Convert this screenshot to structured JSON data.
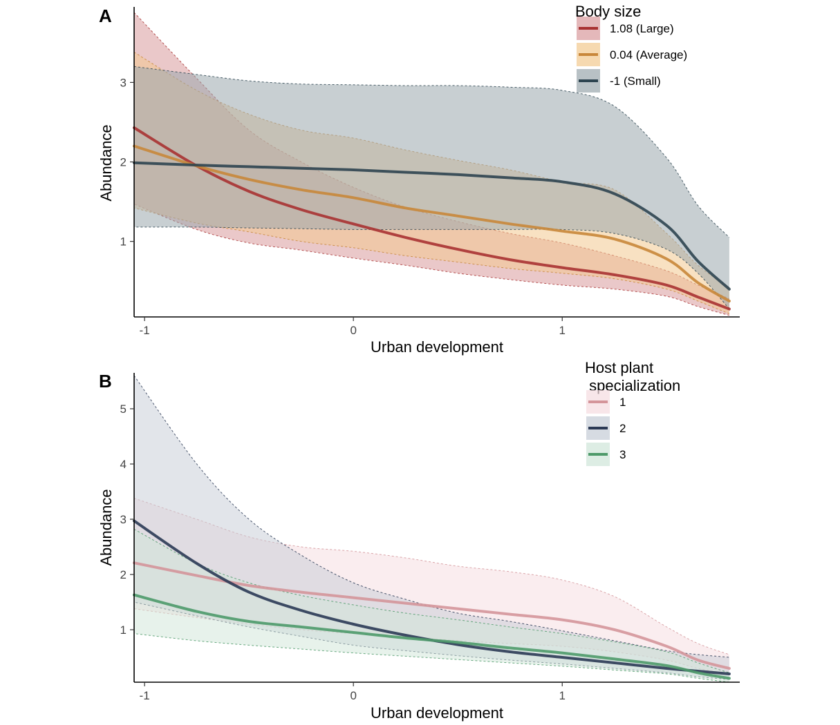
{
  "chart_data": [
    {
      "panel": "A",
      "type": "line",
      "xlabel": "Urban development",
      "ylabel": "Abundance",
      "xlim": [
        -1.05,
        1.85
      ],
      "ylim": [
        0.05,
        3.95
      ],
      "xticks": [
        -1,
        0,
        1
      ],
      "yticks": [
        1,
        2,
        3
      ],
      "grid": false,
      "legend": {
        "title": "Body size",
        "position": "top-right"
      },
      "x": [
        -1.05,
        -0.75,
        -0.5,
        -0.25,
        0,
        0.25,
        0.5,
        0.75,
        1.0,
        1.25,
        1.5,
        1.65,
        1.8
      ],
      "series": [
        {
          "name": "1.08 (Large)",
          "color": "#a83232",
          "fill": "#d99a9d",
          "values": [
            2.43,
            1.95,
            1.63,
            1.4,
            1.22,
            1.05,
            0.9,
            0.77,
            0.67,
            0.58,
            0.45,
            0.3,
            0.15
          ],
          "lower": [
            1.47,
            1.15,
            0.98,
            0.89,
            0.79,
            0.7,
            0.6,
            0.52,
            0.45,
            0.4,
            0.31,
            0.18,
            0.07
          ],
          "upper": [
            3.88,
            3.05,
            2.4,
            2.0,
            1.68,
            1.43,
            1.25,
            1.1,
            0.98,
            0.82,
            0.63,
            0.45,
            0.28
          ]
        },
        {
          "name": "0.04 (Average)",
          "color": "#c8873a",
          "fill": "#f2c98f",
          "values": [
            2.2,
            1.95,
            1.78,
            1.65,
            1.55,
            1.42,
            1.32,
            1.22,
            1.13,
            1.03,
            0.78,
            0.48,
            0.25
          ],
          "lower": [
            1.42,
            1.23,
            1.12,
            1.0,
            0.92,
            0.82,
            0.74,
            0.66,
            0.6,
            0.53,
            0.4,
            0.25,
            0.09
          ],
          "upper": [
            3.38,
            2.9,
            2.6,
            2.4,
            2.3,
            2.15,
            2.02,
            1.9,
            1.75,
            1.65,
            1.1,
            0.7,
            0.42
          ]
        },
        {
          "name": "-1 (Small)",
          "color": "#2d4450",
          "fill": "#9aa7ad",
          "values": [
            1.99,
            1.96,
            1.94,
            1.92,
            1.9,
            1.87,
            1.84,
            1.8,
            1.75,
            1.6,
            1.2,
            0.75,
            0.4
          ],
          "lower": [
            1.18,
            1.18,
            1.17,
            1.16,
            1.15,
            1.15,
            1.15,
            1.15,
            1.15,
            1.1,
            0.9,
            0.6,
            0.15
          ],
          "upper": [
            3.2,
            3.1,
            3.02,
            2.98,
            2.97,
            2.96,
            2.96,
            2.94,
            2.9,
            2.7,
            2.05,
            1.45,
            1.05
          ]
        }
      ]
    },
    {
      "panel": "B",
      "type": "line",
      "xlabel": "Urban development",
      "ylabel": "Abundance",
      "xlim": [
        -1.05,
        1.85
      ],
      "ylim": [
        0.05,
        5.65
      ],
      "xticks": [
        -1,
        0,
        1
      ],
      "yticks": [
        1,
        2,
        3,
        4,
        5
      ],
      "grid": false,
      "legend": {
        "title": "Host plant\n specialization",
        "position": "top-right"
      },
      "x": [
        -1.05,
        -0.75,
        -0.5,
        -0.25,
        0,
        0.25,
        0.5,
        0.75,
        1.0,
        1.25,
        1.5,
        1.65,
        1.8
      ],
      "series": [
        {
          "name": "1",
          "color": "#d4959a",
          "fill": "#f5dcdf",
          "values": [
            2.21,
            1.98,
            1.8,
            1.68,
            1.58,
            1.48,
            1.38,
            1.28,
            1.18,
            1.0,
            0.7,
            0.45,
            0.3
          ],
          "lower": [
            1.38,
            1.22,
            1.1,
            1.0,
            0.93,
            0.87,
            0.8,
            0.75,
            0.7,
            0.6,
            0.45,
            0.3,
            0.2
          ],
          "upper": [
            3.38,
            3.0,
            2.68,
            2.5,
            2.42,
            2.3,
            2.15,
            2.05,
            1.9,
            1.6,
            1.05,
            0.75,
            0.55
          ]
        },
        {
          "name": "2",
          "color": "#2b3a55",
          "fill": "#c5ccd5",
          "values": [
            2.97,
            2.2,
            1.68,
            1.35,
            1.1,
            0.9,
            0.73,
            0.6,
            0.5,
            0.4,
            0.3,
            0.25,
            0.2
          ],
          "lower": [
            1.5,
            1.25,
            1.05,
            0.88,
            0.72,
            0.62,
            0.53,
            0.45,
            0.38,
            0.3,
            0.22,
            0.15,
            0.1
          ],
          "upper": [
            5.6,
            4.0,
            3.0,
            2.35,
            1.85,
            1.55,
            1.3,
            1.15,
            0.98,
            0.8,
            0.62,
            0.55,
            0.5
          ]
        },
        {
          "name": "3",
          "color": "#4e9a6a",
          "fill": "#cfe6d8",
          "values": [
            1.63,
            1.33,
            1.15,
            1.05,
            0.95,
            0.85,
            0.77,
            0.67,
            0.58,
            0.47,
            0.35,
            0.22,
            0.12
          ],
          "lower": [
            0.93,
            0.8,
            0.72,
            0.65,
            0.58,
            0.52,
            0.46,
            0.4,
            0.34,
            0.27,
            0.2,
            0.12,
            0.05
          ],
          "upper": [
            2.82,
            2.2,
            1.85,
            1.62,
            1.45,
            1.3,
            1.18,
            1.05,
            0.93,
            0.78,
            0.6,
            0.4,
            0.22
          ]
        }
      ]
    }
  ]
}
